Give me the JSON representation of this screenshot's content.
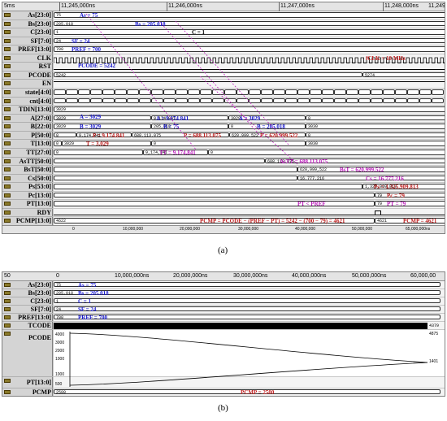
{
  "captions": {
    "a": "(a)",
    "b": "(b)"
  },
  "window_a": {
    "zoom_label": "5ms",
    "time_ticks": [
      "11,245,000ns",
      "11,246,000ns",
      "11,247,000ns",
      "11,248,000ns",
      "11,249,0"
    ],
    "bottom_ticks": [
      "0",
      "10,000,000",
      "20,000,000",
      "30,000,000",
      "40,000,000",
      "50,000,000",
      "65,000,000ns"
    ],
    "signals": [
      "As[23:0]",
      "Bs[23:0]",
      "C[23:0]",
      "SF[7:0]",
      "PREF[13:0]",
      "CLK",
      "RST",
      "PCODE",
      "EN",
      "state[4:0]",
      "cnt[4:0]",
      "TDIN[13:0]",
      "A[27:0]",
      "B[22:0]",
      "P[50:0]",
      "T[13:0]",
      "TT[27:0]",
      "AsTT[50:0]",
      "BsT[50:0]",
      "Cs[50:0]",
      "Ps[53:0]",
      "Pc[13:0]",
      "PT[13:0]",
      "RDY",
      "PCMP[13:0]"
    ],
    "values": {
      "as": "75",
      "bs": "205,018",
      "c": "1",
      "sf": "24",
      "pref": "700",
      "pcode1": "5242",
      "pcode2": "5274",
      "tdin": "3029",
      "a_vals": [
        "3029",
        "9,174,841",
        "3029",
        "0"
      ],
      "b_vals": [
        "3029",
        "205,018",
        "0",
        "3030"
      ],
      "p_vals": [
        "0",
        "9,174,841",
        "688,113,075",
        "620,999,522",
        "0"
      ],
      "t_vals": [
        "0",
        "3029",
        "0",
        "3030"
      ],
      "tt_vals": [
        "0",
        "9,174,841",
        "0"
      ],
      "astt": "688,113,075",
      "bst": "620,999,522",
      "cs": "16,777,216",
      "ps": "1,325,909,813",
      "pc": "79",
      "pt": "79",
      "pcmp1": "4622",
      "pcmp2": "4621"
    },
    "annotations": {
      "as": "As = 75",
      "bs": "Bs = 205.018",
      "c": "C = 1",
      "sf": "SF = 24",
      "pref": "PREF = 700",
      "fclk": "fCLK = 10 MHz",
      "pcode": "PCODE = 5242",
      "a1": "A = 3029",
      "a2": "A = 9.174.841",
      "a3": "A = 3029",
      "b1": "B = 3029",
      "b2": "B = 75",
      "b3": "B = 205.018",
      "p1": "P = 9.174.841",
      "p2": "P = 688.113.075",
      "p3": "P = 620.999.522",
      "t": "T = 3.029",
      "tt": "TT = 9.174.841",
      "astt": "AsTT = 688.113.075",
      "bst": "BsT = 620.999.522",
      "cs": "Cs = 16.777.216",
      "ps": "Ps = 1.325.909.813",
      "pc": "Pc = 79",
      "ptlt": "PT < PREF",
      "pt": "PT = 79",
      "formula": "PCMP = PCODE − (PREF − PT) = 5242 − (700 − 79) = 4621",
      "pcmp": "PCMP = 4621"
    }
  },
  "window_b": {
    "zoom_label": "50",
    "time_ticks": [
      "0",
      "10,000,000ns",
      "20,000,000ns",
      "30,000,000ns",
      "40,000,000ns",
      "50,000,000ns",
      "60,000,00"
    ],
    "signals": [
      "As[23:0]",
      "Bs[23:0]",
      "C[23:0]",
      "SF[7:0]",
      "PREF[13:0]",
      "TCODE",
      "PCODE",
      "PT[13:0]",
      "PCMP"
    ],
    "values": {
      "as": "75",
      "bs": "205,018",
      "c": "1",
      "sf": "24",
      "pref": "700",
      "tcode": "4379",
      "pcode_max": "4875",
      "pcode_min": "1401",
      "pcmp": "2500"
    },
    "axis_ticks": [
      "4000",
      "3000",
      "2000",
      "1000",
      "1000",
      "500"
    ],
    "annotations": {
      "as": "As = 75",
      "bs": "Bs = 205.018",
      "c": "C = 1",
      "sf": "SF = 24",
      "pref": "PREF = 700",
      "pcmp": "PCMP = 2500"
    }
  },
  "colors": {
    "blue": "#1a1ad0",
    "red": "#c02020",
    "magenta": "#c020c0"
  }
}
